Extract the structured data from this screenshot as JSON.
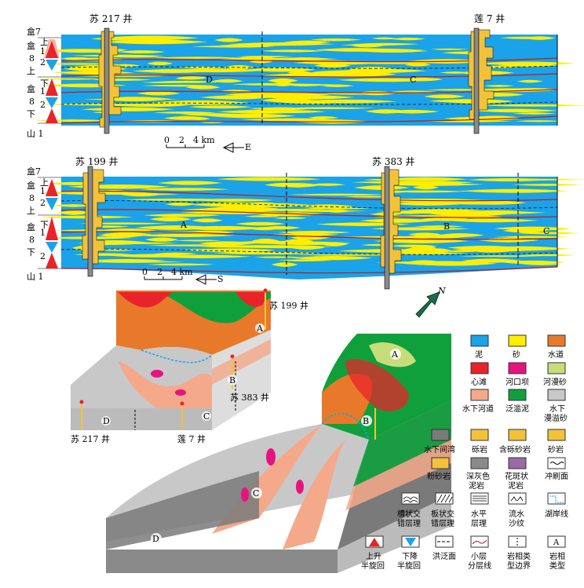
{
  "section1": {
    "wells": [
      "苏 217 井",
      "莲 7 井"
    ],
    "strat": [
      {
        "col1": "盒7",
        "col2": "",
        "col3": ""
      },
      {
        "col1": "盒",
        "col2": "上",
        "col3": "1"
      },
      {
        "col1": "8",
        "col2": "",
        "col3": "2"
      },
      {
        "col1": "上",
        "col2": "",
        "col3": ""
      },
      {
        "col1": "盒",
        "col2": "下",
        "col3": "1"
      },
      {
        "col1": "8",
        "col2": "",
        "col3": "2"
      },
      {
        "col1": "下",
        "col2": "",
        "col3": ""
      },
      {
        "col1": "山 1",
        "col2": "",
        "col3": ""
      }
    ],
    "facies_labels": [
      "D",
      "C"
    ],
    "scale": {
      "ticks": [
        "0",
        "2",
        "4 km"
      ],
      "direction": "E"
    }
  },
  "section2": {
    "wells": [
      "苏 199 井",
      "苏 383 井"
    ],
    "strat": [
      {
        "col1": "盒7",
        "col2": "",
        "col3": ""
      },
      {
        "col1": "盒",
        "col2": "上",
        "col3": "1"
      },
      {
        "col1": "8",
        "col2": "",
        "col3": "2"
      },
      {
        "col1": "上",
        "col2": "",
        "col3": ""
      },
      {
        "col1": "盒",
        "col2": "下",
        "col3": "1"
      },
      {
        "col1": "8",
        "col2": "",
        "col3": ""
      },
      {
        "col1": "下",
        "col2": "",
        "col3": "2"
      },
      {
        "col1": "山 1",
        "col2": "",
        "col3": ""
      }
    ],
    "facies_labels": [
      "A",
      "B",
      "C"
    ],
    "scale": {
      "ticks": [
        "0",
        "2",
        "4 km"
      ],
      "direction": "S"
    }
  },
  "block": {
    "wells": {
      "su199": "苏 199 井",
      "su383": "苏 383 井",
      "su217": "苏 217 井",
      "lian7": "莲 7 井"
    },
    "facies_labels_small": [
      "A",
      "B",
      "C",
      "D"
    ],
    "facies_labels_large": [
      "A",
      "B",
      "C",
      "D"
    ],
    "north": "N"
  },
  "legend": [
    {
      "label": "泥",
      "color": "#1aa3e8"
    },
    {
      "label": "砂",
      "color": "#ffee00"
    },
    {
      "label": "水道",
      "color": "#e8792a"
    },
    {
      "label": "心滩",
      "color": "#e8242a"
    },
    {
      "label": "河口坝",
      "color": "#e6137e"
    },
    {
      "label": "河漫砂",
      "color": "#c7dd7a"
    },
    {
      "label": "水下河道",
      "color": "#f4a98a"
    },
    {
      "label": "泛滥泥",
      "color": "#0fa03c"
    },
    {
      "label": "水下漫溢砂",
      "color": "#c8c8c8"
    },
    {
      "label": "水下间湾",
      "color": "#7a7a7a"
    },
    {
      "label": "砾岩",
      "color": "#f2c23a"
    },
    {
      "label": "含砾砂岩",
      "color": "#f2c23a"
    },
    {
      "label": "砂岩",
      "color": "#f2c23a"
    },
    {
      "label": "粉砂岩",
      "color": "#f2c23a"
    },
    {
      "label": "深灰色泥岩",
      "color": "#8a8a8a"
    },
    {
      "label": "花斑状泥岩",
      "color": "#9a6aa6"
    },
    {
      "label": "冲刷面",
      "color": "#ffffff"
    },
    {
      "label": "槽状交错层理",
      "color": "#ffffff"
    },
    {
      "label": "板状交错层理",
      "color": "#ffffff"
    },
    {
      "label": "水平层理",
      "color": "#ffffff"
    },
    {
      "label": "流水沙纹",
      "color": "#ffffff"
    },
    {
      "label": "湖岸线",
      "color": "#ffffff"
    },
    {
      "label": "上升半旋回",
      "color": "#e8242a"
    },
    {
      "label": "下降半旋回",
      "color": "#1aa3e8"
    },
    {
      "label": "洪泛面",
      "color": "#ffffff"
    },
    {
      "label": "小层分层线",
      "color": "#c01a1a"
    },
    {
      "label": "岩相类型边界",
      "color": "#ffffff"
    },
    {
      "label": "岩相类型",
      "color": "#ffffff"
    }
  ],
  "legend_text": {
    "l0": "泥",
    "l1": "砂",
    "l2": "水道",
    "l3": "心滩",
    "l4": "河口坝",
    "l5": "河漫砂",
    "l6": "水下河道",
    "l7": "泛滥泥",
    "l8a": "水下",
    "l8b": "漫溢砂",
    "l9": "水下间湾",
    "l10": "砾岩",
    "l11": "含砾砂岩",
    "l12": "砂岩",
    "l13": "粉砂岩",
    "l14a": "深灰色",
    "l14b": "泥岩",
    "l15a": "花斑状",
    "l15b": "泥岩",
    "l16": "冲刷面",
    "l17a": "槽状交",
    "l17b": "错层理",
    "l18a": "板状交",
    "l18b": "错层理",
    "l19a": "水平",
    "l19b": "层理",
    "l20a": "流水",
    "l20b": "沙纹",
    "l21": "湖岸线",
    "l22a": "上升",
    "l22b": "半旋回",
    "l23a": "下降",
    "l23b": "半旋回",
    "l24": "洪泛面",
    "l25a": "小层",
    "l25b": "分层线",
    "l26a": "岩相类",
    "l26b": "型边界",
    "l27a": "岩相",
    "l27b": "类型",
    "symA": "A"
  }
}
